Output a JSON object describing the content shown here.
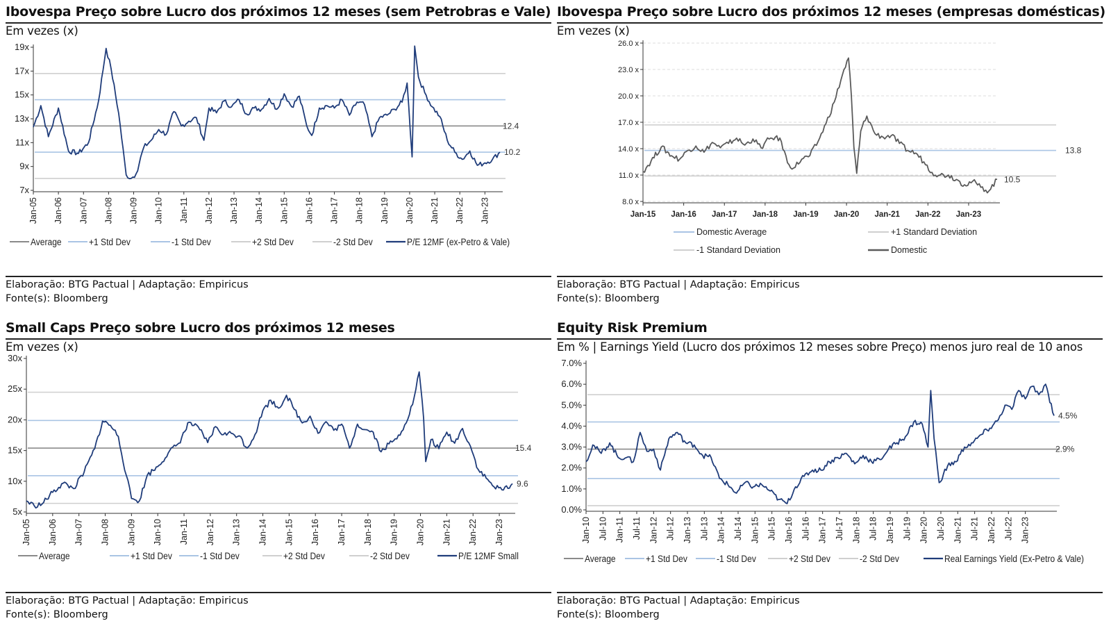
{
  "charts": [
    {
      "title": "Ibovespa Preço sobre Lucro dos próximos 12 meses (sem Petrobras e Vale)",
      "subtitle": "Em vezes (x)",
      "source_line1": "Elaboração: BTG Pactual | Adaptação: Empiricus",
      "source_line2": "Fonte(s): Bloomberg"
    },
    {
      "title": "Ibovespa Preço sobre Lucro dos próximos 12 meses (empresas domésticas)",
      "subtitle": "Em vezes (x)",
      "source_line1": "Elaboração: BTG Pactual | Adaptação: Empiricus",
      "source_line2": "Fonte(s): Bloomberg"
    },
    {
      "title": "Small Caps Preço sobre Lucro dos próximos 12 meses",
      "subtitle": "Em vezes (x)",
      "source_line1": "Elaboração: BTG Pactual | Adaptação: Empiricus",
      "source_line2": "Fonte(s): Bloomberg"
    },
    {
      "title": "Equity Risk Premium",
      "subtitle": "Em % | Earnings Yield (Lucro dos próximos 12 meses sobre Preço) menos juro real de 10 anos",
      "source_line1": "Elaboração: BTG Pactual | Adaptação: Empiricus",
      "source_line2": "Fonte(s): Bloomberg"
    }
  ],
  "chart_data": [
    {
      "type": "line",
      "x_start": 2005.0,
      "x_end": 2023.6,
      "yticks": [
        7,
        9,
        11,
        13,
        15,
        17,
        19
      ],
      "ytick_labels": [
        "7x",
        "9x",
        "11x",
        "13x",
        "15x",
        "17x",
        "19x"
      ],
      "ylim": [
        7,
        19
      ],
      "xtick_labels": [
        "Jan-05",
        "Jan-06",
        "Jan-07",
        "Jan-08",
        "Jan-09",
        "Jan-10",
        "Jan-11",
        "Jan-12",
        "Jan-13",
        "Jan-14",
        "Jan-15",
        "Jan-16",
        "Jan-17",
        "Jan-18",
        "Jan-19",
        "Jan-20",
        "Jan-21",
        "Jan-22",
        "Jan-23"
      ],
      "reference_lines": [
        {
          "name": "Average",
          "value": 12.4,
          "label": "12.4"
        },
        {
          "name": "+1 Std Dev",
          "value": 14.6
        },
        {
          "name": "-1 Std Dev",
          "value": 10.2
        },
        {
          "name": "+2 Std Dev",
          "value": 16.8
        },
        {
          "name": "-2 Std Dev",
          "value": 8.0
        }
      ],
      "end_label": "10.2",
      "legend": [
        "Average",
        "+1 Std Dev",
        "-1 Std Dev",
        "+2 Std Dev",
        "-2 Std Dev",
        "P/E 12MF (ex-Petro & Vale)"
      ],
      "series": [
        {
          "name": "P/E 12MF (ex-Petro & Vale)",
          "x": [
            2005.0,
            2005.3,
            2005.6,
            2006.0,
            2006.4,
            2006.8,
            2007.2,
            2007.6,
            2007.9,
            2008.1,
            2008.4,
            2008.7,
            2008.9,
            2009.1,
            2009.4,
            2009.7,
            2010.0,
            2010.3,
            2010.6,
            2010.9,
            2011.2,
            2011.5,
            2011.8,
            2012.0,
            2012.3,
            2012.6,
            2012.9,
            2013.2,
            2013.5,
            2013.8,
            2014.1,
            2014.4,
            2014.7,
            2015.0,
            2015.3,
            2015.6,
            2015.9,
            2016.1,
            2016.4,
            2016.7,
            2017.0,
            2017.3,
            2017.6,
            2017.9,
            2018.2,
            2018.5,
            2018.8,
            2019.1,
            2019.4,
            2019.7,
            2019.9,
            2020.1,
            2020.2,
            2020.35,
            2020.6,
            2020.9,
            2021.2,
            2021.5,
            2021.8,
            2022.1,
            2022.4,
            2022.7,
            2023.0,
            2023.3,
            2023.6
          ],
          "y": [
            12.3,
            14.1,
            11.5,
            13.9,
            10.3,
            10.1,
            11.0,
            14.5,
            18.9,
            17.2,
            13.5,
            8.3,
            8.0,
            8.4,
            10.6,
            11.2,
            12.1,
            11.7,
            13.6,
            12.4,
            12.8,
            13.1,
            11.2,
            13.9,
            13.5,
            14.5,
            14.0,
            14.6,
            13.4,
            13.9,
            13.8,
            14.7,
            13.8,
            15.1,
            14.0,
            14.9,
            12.4,
            11.6,
            13.9,
            14.1,
            13.9,
            14.6,
            13.3,
            14.4,
            14.2,
            11.5,
            13.1,
            13.3,
            13.8,
            14.4,
            16.0,
            9.8,
            19.1,
            16.5,
            15.2,
            14.0,
            13.2,
            11.2,
            10.2,
            9.6,
            10.3,
            9.1,
            9.3,
            9.6,
            10.2
          ]
        }
      ]
    },
    {
      "type": "line",
      "x_start": 2015.0,
      "x_end": 2023.7,
      "yticks": [
        8,
        11,
        14,
        17,
        20,
        23,
        26
      ],
      "ytick_labels": [
        "8.0 x",
        "11.0 x",
        "14.0 x",
        "17.0 x",
        "20.0 x",
        "23.0 x",
        "26.0 x"
      ],
      "ylim": [
        8,
        26
      ],
      "xtick_labels": [
        "Jan-15",
        "Jan-16",
        "Jan-17",
        "Jan-18",
        "Jan-19",
        "Jan-20",
        "Jan-21",
        "Jan-22",
        "Jan-23"
      ],
      "reference_lines": [
        {
          "name": "Domestic Average",
          "value": 13.8,
          "label": "13.8"
        },
        {
          "name": "+1 Standard Deviation",
          "value": 16.7
        },
        {
          "name": "-1 Standard Deviation",
          "value": 10.9
        }
      ],
      "end_label": "10.5",
      "legend": [
        "Domestic Average",
        "+1 Standard Deviation",
        "-1 Standard Deviation",
        "Domestic"
      ],
      "series": [
        {
          "name": "Domestic",
          "x": [
            2015.0,
            2015.2,
            2015.45,
            2015.7,
            2015.9,
            2016.1,
            2016.3,
            2016.5,
            2016.7,
            2016.9,
            2017.1,
            2017.3,
            2017.5,
            2017.7,
            2017.9,
            2018.1,
            2018.25,
            2018.4,
            2018.55,
            2018.7,
            2018.9,
            2019.1,
            2019.3,
            2019.5,
            2019.7,
            2019.9,
            2020.05,
            2020.12,
            2020.18,
            2020.25,
            2020.35,
            2020.5,
            2020.7,
            2020.9,
            2021.1,
            2021.3,
            2021.5,
            2021.7,
            2021.9,
            2022.1,
            2022.3,
            2022.5,
            2022.7,
            2022.9,
            2023.1,
            2023.3,
            2023.5,
            2023.7
          ],
          "y": [
            11.4,
            12.6,
            14.2,
            13.2,
            12.8,
            13.8,
            14.3,
            13.6,
            14.7,
            14.1,
            14.6,
            15.2,
            14.4,
            15.1,
            14.1,
            15.1,
            15.3,
            14.8,
            12.4,
            11.8,
            12.8,
            13.2,
            14.8,
            16.9,
            19.3,
            22.4,
            24.3,
            20.0,
            14.2,
            11.2,
            16.0,
            17.7,
            15.7,
            15.3,
            15.5,
            14.6,
            13.8,
            13.5,
            12.5,
            11.3,
            11.0,
            11.0,
            10.5,
            9.9,
            10.3,
            9.6,
            9.2,
            10.5
          ]
        }
      ]
    },
    {
      "type": "line",
      "x_start": 2005.0,
      "x_end": 2023.5,
      "yticks": [
        5,
        10,
        15,
        20,
        25,
        30
      ],
      "ytick_labels": [
        "5x",
        "10x",
        "15x",
        "20x",
        "25x",
        "30x"
      ],
      "ylim": [
        5,
        30
      ],
      "xtick_labels": [
        "Jan-05",
        "Jan-06",
        "Jan-07",
        "Jan-08",
        "Jan-09",
        "Jan-10",
        "Jan-11",
        "Jan-12",
        "Jan-13",
        "Jan-14",
        "Jan-15",
        "Jan-16",
        "Jan-17",
        "Jan-18",
        "Jan-19",
        "Jan-20",
        "Jan-21",
        "Jan-22",
        "Jan-23"
      ],
      "reference_lines": [
        {
          "name": "Average",
          "value": 15.4,
          "label": "15.4"
        },
        {
          "name": "+1 Std Dev",
          "value": 19.9
        },
        {
          "name": "-1 Std Dev",
          "value": 10.9
        },
        {
          "name": "+2 Std Dev",
          "value": 24.5
        },
        {
          "name": "-2 Std Dev",
          "value": 6.4
        }
      ],
      "end_label": "9.6",
      "legend": [
        "Average",
        "+1 Std Dev",
        "-1 Std Dev",
        "+2 Std Dev",
        "-2 Std Dev",
        "P/E 12MF Small"
      ],
      "series": [
        {
          "name": "P/E 12MF Small",
          "x": [
            2005.0,
            2005.3,
            2005.6,
            2006.0,
            2006.4,
            2006.8,
            2007.2,
            2007.6,
            2007.9,
            2008.2,
            2008.5,
            2008.8,
            2009.0,
            2009.3,
            2009.6,
            2010.0,
            2010.4,
            2010.8,
            2011.2,
            2011.6,
            2011.9,
            2012.2,
            2012.5,
            2012.8,
            2013.1,
            2013.4,
            2013.7,
            2014.0,
            2014.3,
            2014.6,
            2014.9,
            2015.2,
            2015.5,
            2015.8,
            2016.1,
            2016.4,
            2016.7,
            2017.0,
            2017.3,
            2017.6,
            2017.9,
            2018.2,
            2018.5,
            2018.8,
            2019.1,
            2019.4,
            2019.7,
            2019.95,
            2020.12,
            2020.2,
            2020.4,
            2020.7,
            2021.0,
            2021.3,
            2021.6,
            2021.9,
            2022.2,
            2022.5,
            2022.8,
            2023.1,
            2023.5
          ],
          "y": [
            6.8,
            6.0,
            6.3,
            8.2,
            9.7,
            8.8,
            11.5,
            15.3,
            19.8,
            19.1,
            17.3,
            11.0,
            7.2,
            6.8,
            11.0,
            12.4,
            14.6,
            16.2,
            19.6,
            18.4,
            16.3,
            18.9,
            17.6,
            17.8,
            17.4,
            15.4,
            17.6,
            21.5,
            23.2,
            21.9,
            24.0,
            21.7,
            19.5,
            20.6,
            17.8,
            19.7,
            18.3,
            19.3,
            15.4,
            19.3,
            18.4,
            18.0,
            14.8,
            16.1,
            16.9,
            19.2,
            22.5,
            27.8,
            20.2,
            13.2,
            16.8,
            15.3,
            18.0,
            16.2,
            18.6,
            15.7,
            11.9,
            10.5,
            9.1,
            8.6,
            9.6
          ]
        }
      ]
    },
    {
      "type": "line",
      "x_start": 2010.0,
      "x_end": 2023.85,
      "yticks": [
        0,
        1,
        2,
        3,
        4,
        5,
        6,
        7
      ],
      "ytick_labels": [
        "0.0%",
        "1.0%",
        "2.0%",
        "3.0%",
        "4.0%",
        "5.0%",
        "6.0%",
        "7.0%"
      ],
      "ylim": [
        0,
        7
      ],
      "xtick_labels": [
        "Jan-10",
        "Jul-10",
        "Jan-11",
        "Jul-11",
        "Jan-12",
        "Jul-12",
        "Jan-13",
        "Jul-13",
        "Jan-14",
        "Jul-14",
        "Jan-15",
        "Jul-15",
        "Jan-16",
        "Jul-16",
        "Jan-17",
        "Jul-17",
        "Jan-18",
        "Jul-18",
        "Jan-19",
        "Jul-19",
        "Jan-20",
        "Jul-20",
        "Jan-21",
        "Jul-21",
        "Jan-22",
        "Jul-22",
        "Jan-23"
      ],
      "reference_lines": [
        {
          "name": "Average",
          "value": 2.9,
          "label": "2.9%"
        },
        {
          "name": "+1 Std Dev",
          "value": 4.2
        },
        {
          "name": "-1 Std Dev",
          "value": 1.5
        },
        {
          "name": "+2 Std Dev",
          "value": 5.5
        },
        {
          "name": "-2 Std Dev",
          "value": 0.2
        }
      ],
      "end_label": "4.5%",
      "legend": [
        "Average",
        "+1 Std Dev",
        "-1 Std Dev",
        "+2 Std Dev",
        "-2 Std Dev",
        "Real Earnings Yield (Ex-Petro & Vale)"
      ],
      "series": [
        {
          "name": "Real Earnings Yield (Ex-Petro & Vale)",
          "x": [
            2010.0,
            2010.2,
            2010.45,
            2010.7,
            2010.95,
            2011.2,
            2011.4,
            2011.6,
            2011.8,
            2012.0,
            2012.2,
            2012.45,
            2012.7,
            2012.95,
            2013.2,
            2013.45,
            2013.7,
            2013.95,
            2014.2,
            2014.45,
            2014.7,
            2014.95,
            2015.2,
            2015.45,
            2015.7,
            2015.95,
            2016.2,
            2016.45,
            2016.7,
            2016.95,
            2017.2,
            2017.45,
            2017.7,
            2017.95,
            2018.2,
            2018.45,
            2018.7,
            2018.95,
            2019.2,
            2019.45,
            2019.7,
            2019.95,
            2020.12,
            2020.2,
            2020.3,
            2020.45,
            2020.7,
            2020.95,
            2021.2,
            2021.45,
            2021.7,
            2021.95,
            2022.2,
            2022.4,
            2022.6,
            2022.8,
            2023.0,
            2023.2,
            2023.4,
            2023.6,
            2023.85
          ],
          "y": [
            2.3,
            3.1,
            2.7,
            3.2,
            2.5,
            2.5,
            2.3,
            3.7,
            2.8,
            2.9,
            1.9,
            3.4,
            3.7,
            3.2,
            3.1,
            2.6,
            2.5,
            1.5,
            1.2,
            0.8,
            1.3,
            1.1,
            1.2,
            0.9,
            0.5,
            0.3,
            1.1,
            1.6,
            1.9,
            1.9,
            2.3,
            2.5,
            2.7,
            2.2,
            2.6,
            2.3,
            2.4,
            2.9,
            3.2,
            3.5,
            4.2,
            4.1,
            3.0,
            5.7,
            3.4,
            1.3,
            2.1,
            2.3,
            3.0,
            3.2,
            3.6,
            3.9,
            4.3,
            5.0,
            4.8,
            5.7,
            5.3,
            5.9,
            5.5,
            6.0,
            4.5
          ]
        }
      ]
    }
  ]
}
